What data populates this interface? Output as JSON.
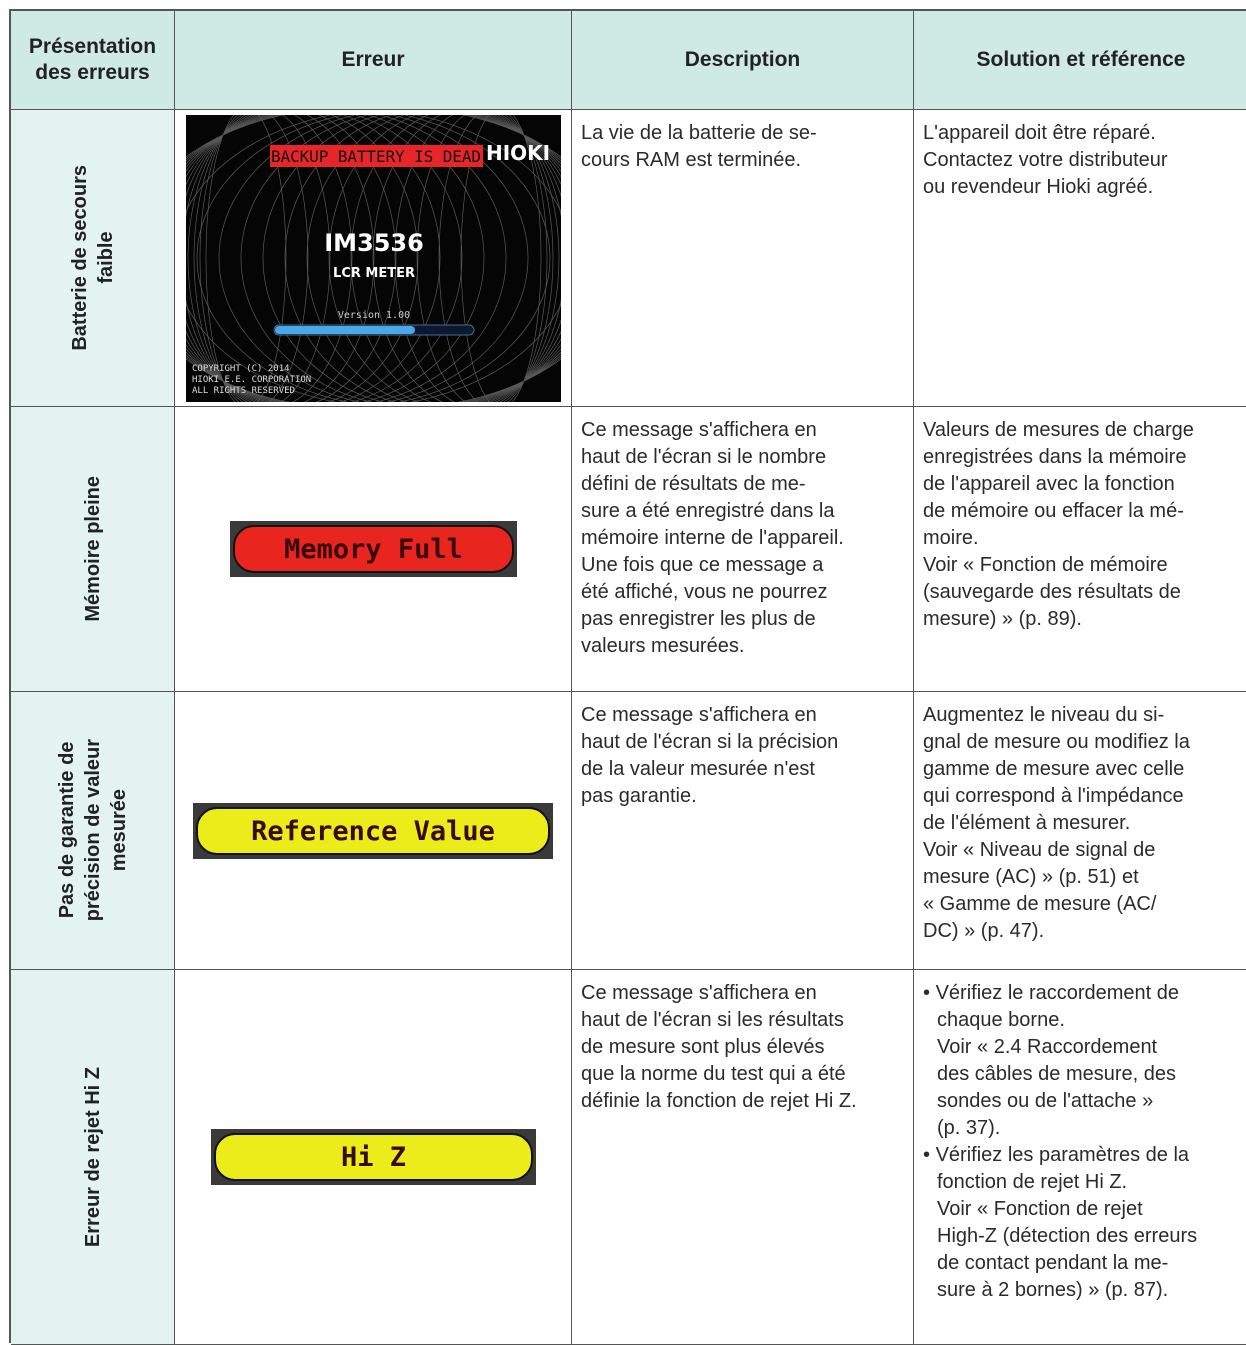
{
  "header": {
    "presentation": [
      "Présentation",
      "des erreurs"
    ],
    "error": "Erreur",
    "description": "Description",
    "solution": "Solution et référence"
  },
  "rows": [
    {
      "presentation": [
        "Batterie de secours",
        "faible"
      ],
      "screen": {
        "banner": "BACKUP BATTERY IS DEAD",
        "brand": "HIOKI",
        "model": "IM3536",
        "product": "LCR METER",
        "version": "Version 1.00",
        "copyright": [
          "COPYRIGHT (C) 2014",
          "HIOKI E.E. CORPORATION",
          "ALL RIGHTS RESERVED"
        ]
      },
      "description": [
        "La vie de la batterie de se-",
        "cours RAM est terminée."
      ],
      "solution": [
        {
          "lines": [
            "L'appareil doit être réparé.",
            "Contactez votre distributeur",
            "ou revendeur Hioki agréé."
          ]
        }
      ]
    },
    {
      "presentation": [
        "Mémoire pleine"
      ],
      "message": {
        "text": "Memory Full",
        "color": "#e8261f",
        "width": 287
      },
      "description": [
        "Ce message s'affichera en",
        "haut de l'écran si le nombre",
        "défini de résultats de me-",
        "sure a été enregistré dans la",
        "mémoire interne de l'appareil.",
        "Une fois que ce message a",
        "été affiché, vous ne pourrez",
        "pas enregistrer les plus de",
        "valeurs mesurées."
      ],
      "solution": [
        {
          "lines": [
            "Valeurs de mesures de charge",
            "enregistrées dans la mémoire",
            "de l'appareil avec la fonction",
            "de mémoire ou effacer la mé-",
            "moire.",
            "Voir « Fonction de mémoire",
            "(sauvegarde des résultats de",
            "mesure) » (p. 89)."
          ]
        }
      ]
    },
    {
      "presentation": [
        "Pas de garantie de",
        "précision de valeur",
        "mesurée"
      ],
      "message": {
        "text": "Reference Value",
        "color": "#ecec1a",
        "width": 360
      },
      "description": [
        "Ce message s'affichera en",
        "haut de l'écran si la précision",
        "de la valeur mesurée n'est",
        "pas garantie."
      ],
      "solution": [
        {
          "lines": [
            "Augmentez le niveau du si-",
            "gnal de mesure ou modifiez la",
            "gamme de mesure avec celle",
            "qui correspond à l'impédance",
            "de l'élément à mesurer.",
            "Voir « Niveau de signal de",
            "mesure (AC) » (p. 51) et",
            "« Gamme de mesure (AC/",
            "DC) » (p. 47)."
          ]
        }
      ]
    },
    {
      "presentation": [
        "Erreur de rejet Hi Z"
      ],
      "message": {
        "text": "Hi Z",
        "color": "#ecec1a",
        "width": 325
      },
      "description": [
        "Ce message s'affichera en",
        "haut de l'écran si les résultats",
        "de mesure sont plus élevés",
        "que la norme du test qui a été",
        "définie la fonction de rejet Hi Z."
      ],
      "solution": [
        {
          "bullet": "•",
          "lines": [
            "Vérifiez le raccordement de",
            "chaque borne.",
            "Voir « 2.4 Raccordement",
            "des câbles de mesure, des",
            "sondes ou de l'attache »",
            "(p. 37)."
          ]
        },
        {
          "bullet": "•",
          "lines": [
            "Vérifiez les paramètres de la",
            "fonction de rejet Hi Z.",
            "Voir « Fonction de rejet",
            "High-Z (détection des erreurs",
            "de contact pendant la me-",
            "sure à 2 bornes) » (p. 87)."
          ]
        }
      ]
    }
  ]
}
